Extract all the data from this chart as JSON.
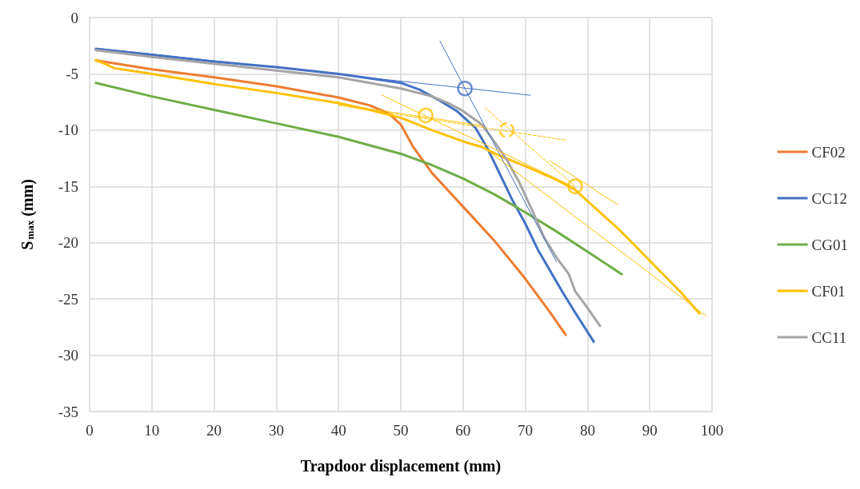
{
  "chart_data": {
    "type": "line",
    "xlabel": "Trapdoor displacement (mm)",
    "ylabel": "S$_{max}$ (mm)",
    "xlim": [
      0,
      100
    ],
    "xticks": [
      0,
      10,
      20,
      30,
      40,
      50,
      60,
      70,
      80,
      90,
      100
    ],
    "ylim": [
      -35,
      0
    ],
    "yticks": [
      -35,
      -30,
      -25,
      -20,
      -15,
      -10,
      -5,
      0
    ],
    "grid": true,
    "legend": "right",
    "marker": "none",
    "line_style": "solid",
    "series": [
      {
        "name": "CF02",
        "color": "#ed7d31",
        "x": [
          1,
          10,
          20,
          30,
          35,
          40,
          45,
          48,
          50,
          52,
          55,
          60,
          65,
          70,
          74,
          76.5
        ],
        "values": [
          -3.8,
          -4.6,
          -5.3,
          -6.1,
          -6.6,
          -7.1,
          -7.8,
          -8.5,
          -9.5,
          -11.5,
          -13.8,
          -16.8,
          -19.8,
          -23.2,
          -26.2,
          -28.2
        ]
      },
      {
        "name": "CC12",
        "color": "#4472c4",
        "x": [
          1,
          10,
          20,
          30,
          40,
          45,
          50,
          53,
          56,
          59,
          62,
          64,
          66,
          68,
          70,
          72,
          74,
          76,
          78,
          81
        ],
        "values": [
          -2.8,
          -3.3,
          -3.9,
          -4.4,
          -5.0,
          -5.4,
          -5.8,
          -6.4,
          -7.3,
          -8.3,
          -9.8,
          -11.7,
          -14.0,
          -16.3,
          -18.3,
          -20.6,
          -22.5,
          -24.4,
          -26.2,
          -28.8
        ]
      },
      {
        "name": "CG01",
        "color": "#70ad47",
        "x": [
          1,
          10,
          20,
          30,
          40,
          50,
          55,
          60,
          65,
          70,
          75,
          80,
          85.5
        ],
        "values": [
          -5.8,
          -7.0,
          -8.2,
          -9.4,
          -10.6,
          -12.1,
          -13.1,
          -14.3,
          -15.7,
          -17.3,
          -19.0,
          -20.8,
          -22.8
        ]
      },
      {
        "name": "CF01",
        "color": "#ffc000",
        "x": [
          1,
          2,
          4,
          10,
          20,
          30,
          40,
          45,
          50,
          55,
          60,
          63,
          66,
          70,
          75,
          78,
          80,
          85,
          90,
          95,
          98
        ],
        "values": [
          -3.8,
          -4.0,
          -4.5,
          -5.0,
          -5.9,
          -6.7,
          -7.6,
          -8.2,
          -8.9,
          -10.0,
          -11.0,
          -11.5,
          -12.3,
          -13.2,
          -14.4,
          -15.3,
          -16.3,
          -18.8,
          -21.6,
          -24.4,
          -26.3
        ]
      },
      {
        "name": "CC11",
        "color": "#a5a5a5",
        "x": [
          1,
          10,
          20,
          30,
          40,
          45,
          50,
          55,
          58,
          60,
          63,
          65,
          67,
          69,
          71,
          73,
          75,
          77,
          78,
          80,
          82
        ],
        "values": [
          -2.9,
          -3.5,
          -4.1,
          -4.7,
          -5.3,
          -5.8,
          -6.3,
          -7.0,
          -7.7,
          -8.3,
          -9.5,
          -11.0,
          -12.6,
          -14.6,
          -17.0,
          -19.5,
          -21.3,
          -22.8,
          -24.3,
          -25.8,
          -27.4
        ]
      },
      {
        "color": "#4472c4",
        "x": [
          1,
          70.8
        ],
        "values": [
          -2.7,
          -6.9
        ]
      },
      {
        "color": "#4472c4",
        "x": [
          56.3,
          75
        ],
        "values": [
          -2.1,
          -21.7
        ]
      },
      {
        "color": "#ffc000",
        "x": [
          47,
          78
        ],
        "values": [
          -6.9,
          -15.1
        ]
      },
      {
        "color": "#ffc000",
        "x": [
          40,
          63
        ],
        "values": [
          -7.7,
          -9.6
        ]
      },
      {
        "color": "#ffc000",
        "x": [
          73.9,
          84.8
        ],
        "values": [
          -12.7,
          -16.6
        ]
      },
      {
        "color": "#ffc000",
        "x": [
          63,
          99
        ],
        "values": [
          -11.4,
          -26.5
        ]
      },
      {
        "color": "#ffc000",
        "line_style": "dashed",
        "x": [
          40,
          76.6
        ],
        "values": [
          -7.8,
          -10.9
        ]
      },
      {
        "color": "#ffc000",
        "line_style": "dashed",
        "x": [
          63.5,
          78
        ],
        "values": [
          -8.0,
          -15.0
        ]
      },
      {
        "type": "scatter",
        "marker": "circle",
        "color": "#4472c4",
        "x": [
          60.3
        ],
        "values": [
          -6.3
        ]
      },
      {
        "type": "scatter",
        "marker": "circle",
        "color": "#ffc000",
        "x": [
          54,
          78
        ],
        "values": [
          -8.7,
          -15.0
        ]
      },
      {
        "type": "scatter",
        "marker": "circle",
        "color": "#ffc000",
        "line_style": "dashed",
        "x": [
          67
        ],
        "values": [
          -10.0
        ]
      }
    ]
  }
}
